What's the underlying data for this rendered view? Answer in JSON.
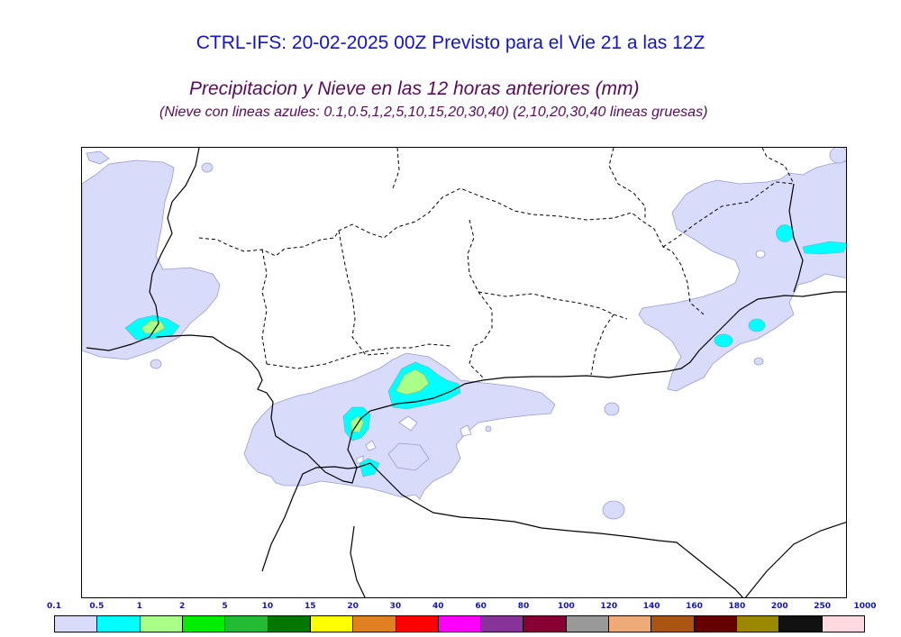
{
  "header": {
    "title": "CTRL-IFS: 20-02-2025 00Z Previsto para el Vie 21 a las 12Z",
    "subtitle": "Precipitacion y Nieve en las 12 horas anteriores (mm)",
    "note": "(Nieve con lineas azules: 0.1,0.5,1,2,5,10,15,20,30,40)  (2,10,20,30,40 lineas gruesas)"
  },
  "legend": {
    "labels": [
      "0.1",
      "0.5",
      "1",
      "2",
      "5",
      "10",
      "15",
      "20",
      "30",
      "40",
      "60",
      "80",
      "100",
      "120",
      "140",
      "160",
      "180",
      "200",
      "250",
      "1000"
    ],
    "colors": [
      "#d8dcfa",
      "#00ffff",
      "#aaff88",
      "#00ee00",
      "#22bb33",
      "#007700",
      "#ffff00",
      "#e08020",
      "#ff0000",
      "#ff00ff",
      "#883399",
      "#880033",
      "#999999",
      "#eeaa77",
      "#aa5511",
      "#660000",
      "#998800",
      "#111111",
      "#ffd8e0"
    ]
  },
  "map": {
    "precip_colors": {
      "light": "#d8dcfa",
      "cyan": "#00ffff",
      "lightgreen": "#aaff88",
      "outline": "#9a9ad0"
    }
  }
}
